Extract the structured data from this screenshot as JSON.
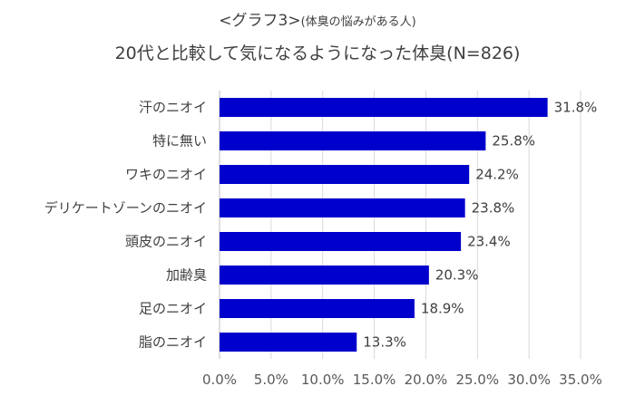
{
  "chart_data": {
    "type": "bar",
    "orientation": "horizontal",
    "title_main": "<グラフ3>",
    "title_sub": "(体臭の悩みがある人)",
    "title": "20代と比較して気になるようになった体臭(N=826)",
    "categories": [
      "汗のニオイ",
      "特に無い",
      "ワキのニオイ",
      "デリケートゾーンのニオイ",
      "頭皮のニオイ",
      "加齢臭",
      "足のニオイ",
      "脂のニオイ"
    ],
    "values": [
      31.8,
      25.8,
      24.2,
      23.8,
      23.4,
      20.3,
      18.9,
      13.3
    ],
    "value_labels": [
      "31.8%",
      "25.8%",
      "24.2%",
      "23.8%",
      "23.4%",
      "20.3%",
      "18.9%",
      "13.3%"
    ],
    "xlim": [
      0,
      35
    ],
    "xticks": [
      0,
      5,
      10,
      15,
      20,
      25,
      30,
      35
    ],
    "xtick_labels": [
      "0.0%",
      "5.0%",
      "10.0%",
      "15.0%",
      "20.0%",
      "25.0%",
      "30.0%",
      "35.0%"
    ],
    "xlabel": "",
    "ylabel": "",
    "grid": true,
    "bar_color": "#0000CC",
    "grid_color": "#D9D9D9"
  }
}
